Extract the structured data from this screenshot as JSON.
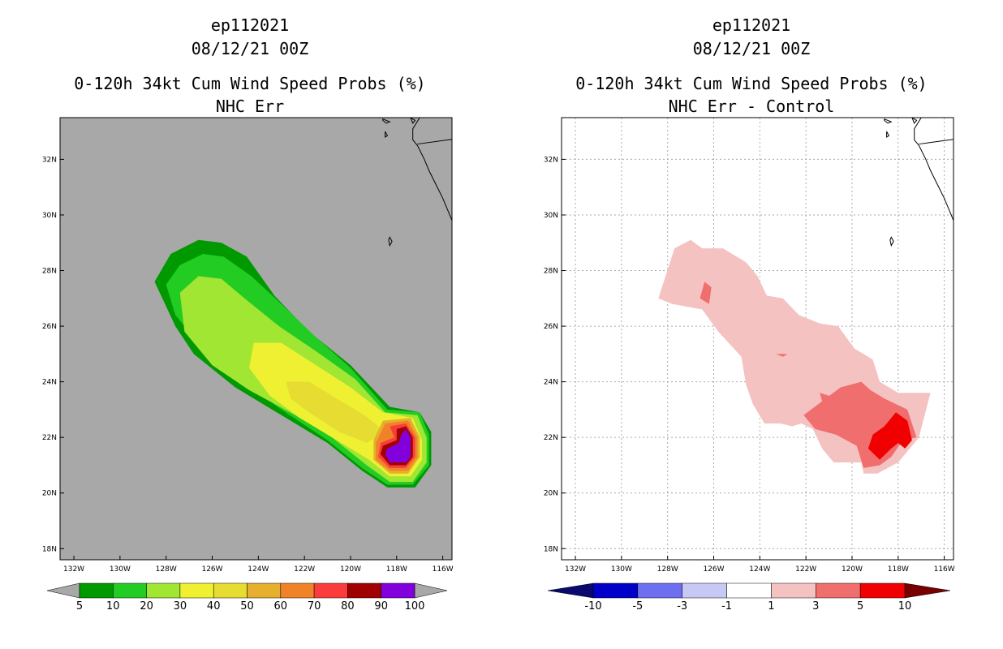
{
  "chart_data": [
    {
      "type": "heatmap",
      "storm_id": "ep112021",
      "datetime": "08/12/21 00Z",
      "title": "0-120h 34kt Cum Wind Speed Probs (%)",
      "subtitle": "NHC Err",
      "x_ticks": [
        "132W",
        "130W",
        "128W",
        "126W",
        "124W",
        "122W",
        "120W",
        "118W",
        "116W"
      ],
      "y_ticks": [
        "32N",
        "30N",
        "28N",
        "26N",
        "24N",
        "22N",
        "20N",
        "18N"
      ],
      "xlim": [
        -132.6,
        -115.6
      ],
      "ylim": [
        17.6,
        33.5
      ],
      "grid": false,
      "background": "#a8a8a8",
      "colorbar": {
        "labels": [
          "5",
          "10",
          "20",
          "30",
          "40",
          "50",
          "60",
          "70",
          "80",
          "90",
          "100"
        ],
        "colors": [
          "#009900",
          "#22cc22",
          "#a0e632",
          "#f0f032",
          "#e6dc32",
          "#e6af2d",
          "#f08228",
          "#fa3c3c",
          "#a00000",
          "#8200dc"
        ]
      },
      "contours": [
        {
          "level": 5,
          "color": "#009900",
          "points": [
            [
              -128.5,
              27.6
            ],
            [
              -127.8,
              28.6
            ],
            [
              -126.6,
              29.1
            ],
            [
              -125.6,
              29.0
            ],
            [
              -124.5,
              28.5
            ],
            [
              -123.3,
              27.1
            ],
            [
              -121.8,
              25.8
            ],
            [
              -120.0,
              24.6
            ],
            [
              -118.3,
              23.1
            ],
            [
              -117.0,
              22.9
            ],
            [
              -116.5,
              22.2
            ],
            [
              -116.5,
              21.0
            ],
            [
              -117.2,
              20.2
            ],
            [
              -118.4,
              20.2
            ],
            [
              -119.5,
              20.8
            ],
            [
              -121.0,
              21.8
            ],
            [
              -123.0,
              22.8
            ],
            [
              -125.0,
              23.8
            ],
            [
              -126.8,
              25.0
            ],
            [
              -127.6,
              26.0
            ]
          ]
        },
        {
          "level": 10,
          "color": "#22cc22",
          "points": [
            [
              -128.0,
              27.5
            ],
            [
              -127.4,
              28.2
            ],
            [
              -126.4,
              28.6
            ],
            [
              -125.5,
              28.5
            ],
            [
              -124.3,
              27.8
            ],
            [
              -123.0,
              26.8
            ],
            [
              -121.5,
              25.6
            ],
            [
              -120.0,
              24.5
            ],
            [
              -118.4,
              23.0
            ],
            [
              -117.0,
              22.9
            ],
            [
              -116.6,
              22.1
            ],
            [
              -116.6,
              21.0
            ],
            [
              -117.3,
              20.3
            ],
            [
              -118.4,
              20.3
            ],
            [
              -119.5,
              20.9
            ],
            [
              -121.0,
              21.9
            ],
            [
              -123.0,
              23.0
            ],
            [
              -125.0,
              24.2
            ],
            [
              -126.6,
              25.4
            ],
            [
              -127.6,
              26.4
            ]
          ]
        },
        {
          "level": 20,
          "color": "#a0e632",
          "points": [
            [
              -127.4,
              27.2
            ],
            [
              -126.6,
              27.8
            ],
            [
              -125.6,
              27.7
            ],
            [
              -124.6,
              27.0
            ],
            [
              -123.1,
              26.0
            ],
            [
              -121.5,
              25.1
            ],
            [
              -119.8,
              24.1
            ],
            [
              -118.5,
              22.9
            ],
            [
              -117.1,
              22.8
            ],
            [
              -116.7,
              22.0
            ],
            [
              -116.7,
              21.1
            ],
            [
              -117.3,
              20.4
            ],
            [
              -118.3,
              20.4
            ],
            [
              -119.3,
              21.0
            ],
            [
              -120.8,
              22.0
            ],
            [
              -122.4,
              22.8
            ],
            [
              -124.4,
              23.7
            ],
            [
              -126.0,
              24.6
            ],
            [
              -127.2,
              25.8
            ]
          ]
        },
        {
          "level": 30,
          "color": "#f0f032",
          "points": [
            [
              -124.2,
              25.4
            ],
            [
              -123.0,
              25.4
            ],
            [
              -121.5,
              24.6
            ],
            [
              -120.0,
              23.8
            ],
            [
              -118.6,
              22.9
            ],
            [
              -117.3,
              22.7
            ],
            [
              -116.9,
              21.9
            ],
            [
              -116.9,
              21.2
            ],
            [
              -117.4,
              20.6
            ],
            [
              -118.3,
              20.6
            ],
            [
              -119.2,
              21.2
            ],
            [
              -120.6,
              21.9
            ],
            [
              -122.2,
              22.7
            ],
            [
              -123.5,
              23.5
            ],
            [
              -124.4,
              24.5
            ]
          ]
        },
        {
          "level": 40,
          "color": "#e6dc32",
          "points": [
            [
              -122.8,
              24.0
            ],
            [
              -121.8,
              24.0
            ],
            [
              -120.6,
              23.4
            ],
            [
              -119.4,
              22.8
            ],
            [
              -118.5,
              22.2
            ],
            [
              -119.3,
              21.8
            ],
            [
              -120.5,
              22.2
            ],
            [
              -121.8,
              22.9
            ],
            [
              -122.6,
              23.4
            ]
          ]
        },
        {
          "level": 50,
          "color": "#e6af2d",
          "points": [
            [
              -118.6,
              22.6
            ],
            [
              -117.4,
              22.7
            ],
            [
              -117.0,
              22.0
            ],
            [
              -117.0,
              21.3
            ],
            [
              -117.5,
              20.7
            ],
            [
              -118.3,
              20.7
            ],
            [
              -119.0,
              21.2
            ],
            [
              -119.0,
              21.9
            ]
          ]
        },
        {
          "level": 60,
          "color": "#f08228",
          "points": [
            [
              -118.5,
              22.5
            ],
            [
              -117.5,
              22.6
            ],
            [
              -117.1,
              22.0
            ],
            [
              -117.1,
              21.3
            ],
            [
              -117.5,
              20.8
            ],
            [
              -118.3,
              20.8
            ],
            [
              -118.9,
              21.2
            ],
            [
              -118.9,
              21.8
            ]
          ]
        },
        {
          "level": 70,
          "color": "#fa3c3c",
          "points": [
            [
              -118.3,
              22.4
            ],
            [
              -117.6,
              22.5
            ],
            [
              -117.2,
              22.0
            ],
            [
              -117.2,
              21.3
            ],
            [
              -117.6,
              20.9
            ],
            [
              -118.3,
              20.9
            ],
            [
              -118.8,
              21.3
            ],
            [
              -118.7,
              21.8
            ],
            [
              -118.1,
              22.0
            ]
          ]
        },
        {
          "level": 80,
          "color": "#a00000",
          "points": [
            [
              -118.0,
              22.3
            ],
            [
              -117.6,
              22.4
            ],
            [
              -117.3,
              22.0
            ],
            [
              -117.3,
              21.3
            ],
            [
              -117.6,
              21.0
            ],
            [
              -118.3,
              21.0
            ],
            [
              -118.7,
              21.4
            ],
            [
              -118.6,
              21.7
            ],
            [
              -118.0,
              21.9
            ]
          ]
        },
        {
          "level": 90,
          "color": "#8200dc",
          "points": [
            [
              -117.8,
              22.1
            ],
            [
              -117.6,
              22.3
            ],
            [
              -117.4,
              22.0
            ],
            [
              -117.4,
              21.3
            ],
            [
              -117.6,
              21.1
            ],
            [
              -118.3,
              21.1
            ],
            [
              -118.5,
              21.4
            ],
            [
              -118.4,
              21.6
            ],
            [
              -117.9,
              21.8
            ]
          ]
        }
      ]
    },
    {
      "type": "heatmap",
      "storm_id": "ep112021",
      "datetime": "08/12/21 00Z",
      "title": "0-120h 34kt Cum Wind Speed Probs (%)",
      "subtitle": "NHC Err - Control",
      "x_ticks": [
        "132W",
        "130W",
        "128W",
        "126W",
        "124W",
        "122W",
        "120W",
        "118W",
        "116W"
      ],
      "y_ticks": [
        "32N",
        "30N",
        "28N",
        "26N",
        "24N",
        "22N",
        "20N",
        "18N"
      ],
      "xlim": [
        -132.6,
        -115.6
      ],
      "ylim": [
        17.6,
        33.5
      ],
      "grid": true,
      "background": "#ffffff",
      "colorbar": {
        "labels": [
          "-10",
          "-5",
          "-3",
          "-1",
          "1",
          "3",
          "5",
          "10"
        ],
        "colors": [
          "#0000c8",
          "#6e6ef0",
          "#c8c8f5",
          "#ffffff",
          "#f5c2c2",
          "#f06e6e",
          "#f00000"
        ],
        "end_low": "#0a0a6e",
        "end_high": "#780000"
      },
      "contours": [
        {
          "level": 1,
          "color": "#f5c2c2",
          "points": [
            [
              -128.4,
              27.0
            ],
            [
              -127.7,
              28.8
            ],
            [
              -127.0,
              29.1
            ],
            [
              -126.5,
              28.8
            ],
            [
              -125.6,
              28.8
            ],
            [
              -124.6,
              28.3
            ],
            [
              -124.1,
              27.8
            ],
            [
              -123.7,
              27.1
            ],
            [
              -123.0,
              27.0
            ],
            [
              -122.3,
              26.4
            ],
            [
              -121.4,
              26.1
            ],
            [
              -120.6,
              26.0
            ],
            [
              -119.9,
              25.2
            ],
            [
              -119.1,
              24.8
            ],
            [
              -118.8,
              24.0
            ],
            [
              -118.0,
              23.6
            ],
            [
              -116.6,
              23.6
            ],
            [
              -117.1,
              22.0
            ],
            [
              -118.0,
              21.1
            ],
            [
              -118.9,
              20.7
            ],
            [
              -119.5,
              20.7
            ],
            [
              -119.6,
              21.1
            ],
            [
              -120.8,
              21.1
            ],
            [
              -121.3,
              21.6
            ],
            [
              -121.7,
              22.3
            ],
            [
              -122.2,
              22.5
            ],
            [
              -122.6,
              22.4
            ],
            [
              -123.1,
              22.5
            ],
            [
              -123.8,
              22.5
            ],
            [
              -124.3,
              23.2
            ],
            [
              -124.6,
              23.9
            ],
            [
              -124.8,
              24.9
            ],
            [
              -125.8,
              25.8
            ],
            [
              -126.5,
              26.6
            ],
            [
              -127.8,
              26.8
            ]
          ]
        },
        {
          "level": 3,
          "color": "#f06e6e",
          "points": [
            [
              -122.1,
              22.8
            ],
            [
              -120.5,
              23.8
            ],
            [
              -119.6,
              24.0
            ],
            [
              -119.2,
              23.7
            ],
            [
              -118.6,
              23.4
            ],
            [
              -117.6,
              23.0
            ],
            [
              -117.2,
              22.0
            ],
            [
              -117.8,
              21.9
            ],
            [
              -118.3,
              21.3
            ],
            [
              -118.8,
              21.0
            ],
            [
              -119.5,
              20.9
            ],
            [
              -119.8,
              21.7
            ],
            [
              -120.7,
              22.1
            ],
            [
              -121.6,
              22.3
            ]
          ]
        },
        {
          "level": 5,
          "color": "#f00000",
          "points": [
            [
              -119.3,
              21.6
            ],
            [
              -119.1,
              22.1
            ],
            [
              -118.6,
              22.4
            ],
            [
              -118.1,
              22.9
            ],
            [
              -117.6,
              22.6
            ],
            [
              -117.4,
              21.9
            ],
            [
              -117.7,
              21.6
            ],
            [
              -118.0,
              21.8
            ],
            [
              -118.3,
              21.6
            ],
            [
              -118.8,
              21.2
            ]
          ]
        },
        {
          "level": 3,
          "color": "#f06e6e",
          "points": [
            [
              -126.6,
              27.0
            ],
            [
              -126.4,
              27.6
            ],
            [
              -126.1,
              27.4
            ],
            [
              -126.2,
              26.8
            ]
          ]
        },
        {
          "level": 3,
          "color": "#f06e6e",
          "points": [
            [
              -121.4,
              23.6
            ],
            [
              -121.0,
              23.5
            ],
            [
              -120.6,
              23.4
            ],
            [
              -121.0,
              23.2
            ],
            [
              -121.3,
              23.3
            ]
          ]
        },
        {
          "level": 3,
          "color": "#f06e6e",
          "points": [
            [
              -123.3,
              25.0
            ],
            [
              -122.8,
              25.0
            ],
            [
              -123.0,
              24.9
            ]
          ]
        }
      ]
    }
  ]
}
